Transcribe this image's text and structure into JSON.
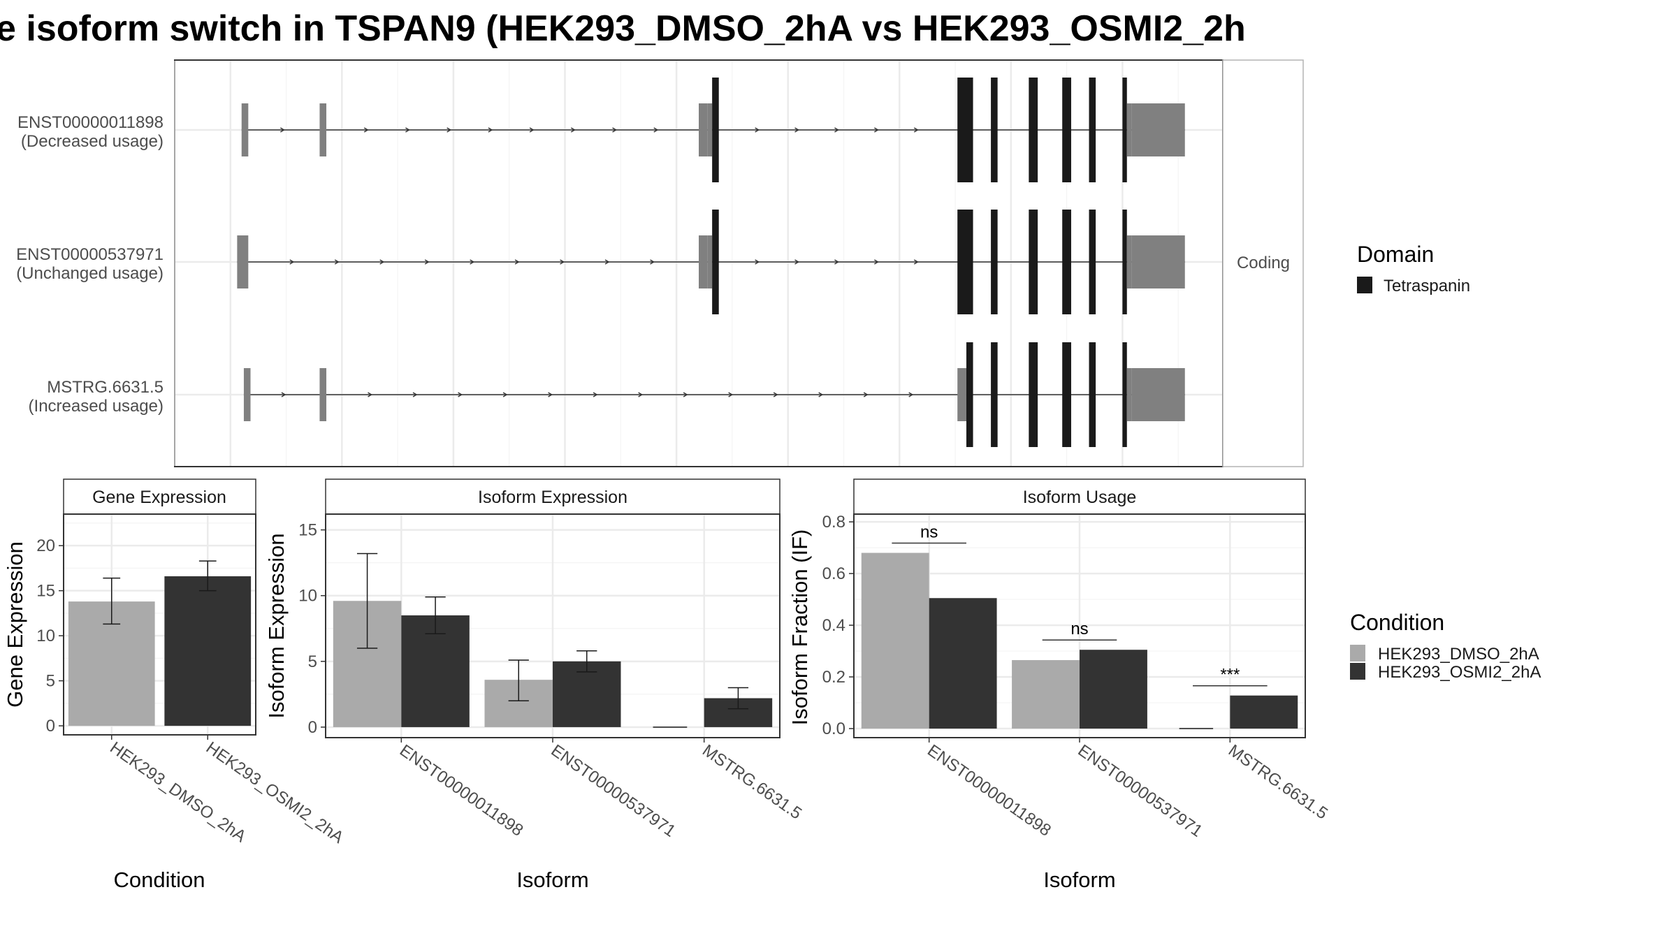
{
  "title": "e isoform switch in TSPAN9 (HEK293_DMSO_2hA vs HEK293_OSMI2_2h",
  "colors": {
    "utr": "#808080",
    "cds": "#1a1a1a",
    "intron": "#333333",
    "dmso": "#aaaaaa",
    "osmi": "#333333",
    "grid": "#ebebeb",
    "panel_border": "#333333"
  },
  "structure": {
    "facet_label": "Coding",
    "transcripts": [
      {
        "label_line1": "ENST00000011898",
        "label_line2": "(Decreased usage)",
        "exons": [
          [
            0.5,
            0.8,
            "utr"
          ],
          [
            4.0,
            4.3,
            "utr"
          ],
          [
            21.0,
            21.4,
            "utr"
          ],
          [
            21.4,
            21.6,
            "utr"
          ],
          [
            21.6,
            21.9,
            "cds"
          ],
          [
            32.6,
            33.3,
            "cds"
          ],
          [
            34.1,
            34.4,
            "cds"
          ],
          [
            35.8,
            36.2,
            "cds"
          ],
          [
            37.3,
            37.7,
            "cds"
          ],
          [
            38.5,
            38.8,
            "cds"
          ],
          [
            40.0,
            40.2,
            "cds"
          ],
          [
            40.2,
            40.4,
            "utr"
          ],
          [
            40.4,
            42.8,
            "utr"
          ]
        ]
      },
      {
        "label_line1": "ENST00000537971",
        "label_line2": "(Unchanged usage)",
        "exons": [
          [
            0.3,
            0.8,
            "utr"
          ],
          [
            21.0,
            21.4,
            "utr"
          ],
          [
            21.4,
            21.6,
            "utr"
          ],
          [
            21.6,
            21.9,
            "cds"
          ],
          [
            32.6,
            33.3,
            "cds"
          ],
          [
            34.1,
            34.4,
            "cds"
          ],
          [
            35.8,
            36.2,
            "cds"
          ],
          [
            37.3,
            37.7,
            "cds"
          ],
          [
            38.5,
            38.8,
            "cds"
          ],
          [
            40.0,
            40.2,
            "cds"
          ],
          [
            40.2,
            40.4,
            "utr"
          ],
          [
            40.4,
            42.8,
            "utr"
          ]
        ]
      },
      {
        "label_line1": "MSTRG.6631.5",
        "label_line2": "(Increased usage)",
        "exons": [
          [
            0.6,
            0.9,
            "utr"
          ],
          [
            4.0,
            4.3,
            "utr"
          ],
          [
            32.6,
            33.0,
            "utr"
          ],
          [
            33.0,
            33.3,
            "cds"
          ],
          [
            34.1,
            34.4,
            "cds"
          ],
          [
            35.8,
            36.2,
            "cds"
          ],
          [
            37.3,
            37.7,
            "cds"
          ],
          [
            38.5,
            38.8,
            "cds"
          ],
          [
            40.0,
            40.2,
            "cds"
          ],
          [
            40.2,
            40.4,
            "utr"
          ],
          [
            40.4,
            42.8,
            "utr"
          ]
        ]
      }
    ],
    "legend_title": "Domain",
    "legend_items": [
      {
        "label": "Tetraspanin",
        "color": "#1a1a1a"
      }
    ]
  },
  "chart_data": [
    {
      "type": "bar",
      "title": "Gene Expression",
      "xlabel": "Condition",
      "ylabel": "Gene Expression",
      "categories": [
        "HEK293_DMSO_2hA",
        "HEK293_OSMI2_2hA"
      ],
      "values": [
        13.8,
        16.6
      ],
      "error_low": [
        11.3,
        15.0
      ],
      "error_high": [
        16.4,
        18.3
      ],
      "ylim": [
        -1,
        23.5
      ],
      "yticks": [
        "0",
        "5",
        "10",
        "15",
        "20"
      ]
    },
    {
      "type": "bar",
      "title": "Isoform Expression",
      "xlabel": "Isoform",
      "ylabel": "Isoform Expression",
      "categories": [
        "ENST00000011898",
        "ENST00000537971",
        "MSTRG.6631.5"
      ],
      "series": [
        {
          "name": "HEK293_DMSO_2hA",
          "values": [
            9.6,
            3.6,
            0.0
          ],
          "error_low": [
            6.0,
            2.0,
            0.0
          ],
          "error_high": [
            13.2,
            5.1,
            0.0
          ]
        },
        {
          "name": "HEK293_OSMI2_2hA",
          "values": [
            8.5,
            5.0,
            2.2
          ],
          "error_low": [
            7.1,
            4.2,
            1.4
          ],
          "error_high": [
            9.9,
            5.8,
            3.0
          ]
        }
      ],
      "ylim": [
        -0.8,
        16.2
      ],
      "yticks": [
        "0",
        "5",
        "10",
        "15"
      ]
    },
    {
      "type": "bar",
      "title": "Isoform Usage",
      "xlabel": "Isoform",
      "ylabel": "Isoform Fraction (IF)",
      "categories": [
        "ENST00000011898",
        "ENST00000537971",
        "MSTRG.6631.5"
      ],
      "series": [
        {
          "name": "HEK293_DMSO_2hA",
          "values": [
            0.68,
            0.265,
            0.0
          ]
        },
        {
          "name": "HEK293_OSMI2_2hA",
          "values": [
            0.505,
            0.305,
            0.128
          ]
        }
      ],
      "significance": [
        "ns",
        "ns",
        "***"
      ],
      "ylim": [
        -0.035,
        0.83
      ],
      "yticks": [
        "0.0",
        "0.2",
        "0.4",
        "0.6",
        "0.8"
      ]
    }
  ],
  "condition_legend": {
    "title": "Condition",
    "items": [
      {
        "label": "HEK293_DMSO_2hA",
        "color": "#aaaaaa"
      },
      {
        "label": "HEK293_OSMI2_2hA",
        "color": "#333333"
      }
    ]
  }
}
